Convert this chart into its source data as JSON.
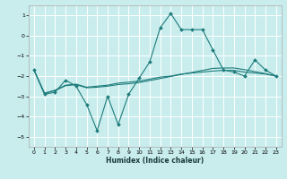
{
  "title": "",
  "xlabel": "Humidex (Indice chaleur)",
  "ylabel": "",
  "xlim": [
    -0.5,
    23.5
  ],
  "ylim": [
    -5.5,
    1.5
  ],
  "yticks": [
    -5,
    -4,
    -3,
    -2,
    -1,
    0,
    1
  ],
  "xticks": [
    0,
    1,
    2,
    3,
    4,
    5,
    6,
    7,
    8,
    9,
    10,
    11,
    12,
    13,
    14,
    15,
    16,
    17,
    18,
    19,
    20,
    21,
    22,
    23
  ],
  "bg_color": "#c9eded",
  "grid_color": "#ffffff",
  "line_color": "#1e7b7b",
  "series1_x": [
    0,
    1,
    2,
    3,
    4,
    5,
    6,
    7,
    8,
    9,
    10,
    11,
    12,
    13,
    14,
    15,
    16,
    17,
    18,
    19,
    20,
    21,
    22,
    23
  ],
  "series1_y": [
    -1.7,
    -2.9,
    -2.8,
    -2.2,
    -2.5,
    -3.4,
    -4.7,
    -3.0,
    -4.4,
    -2.9,
    -2.1,
    -1.3,
    0.4,
    1.1,
    0.3,
    0.3,
    0.3,
    -0.7,
    -1.7,
    -1.8,
    -2.0,
    -1.2,
    -1.7,
    -2.0
  ],
  "series2_x": [
    0,
    1,
    2,
    3,
    4,
    5,
    6,
    7,
    8,
    9,
    10,
    11,
    12,
    13,
    14,
    15,
    16,
    17,
    18,
    19,
    20,
    21,
    22,
    23
  ],
  "series2_y": [
    -1.7,
    -2.85,
    -2.7,
    -2.45,
    -2.4,
    -2.55,
    -2.5,
    -2.45,
    -2.35,
    -2.3,
    -2.25,
    -2.15,
    -2.05,
    -2.0,
    -1.9,
    -1.85,
    -1.8,
    -1.75,
    -1.72,
    -1.72,
    -1.8,
    -1.85,
    -1.9,
    -2.0
  ],
  "series3_x": [
    0,
    1,
    2,
    3,
    4,
    5,
    6,
    7,
    8,
    9,
    10,
    11,
    12,
    13,
    14,
    15,
    16,
    17,
    18,
    19,
    20,
    21,
    22,
    23
  ],
  "series3_y": [
    -1.7,
    -2.85,
    -2.72,
    -2.48,
    -2.42,
    -2.58,
    -2.55,
    -2.5,
    -2.42,
    -2.38,
    -2.32,
    -2.22,
    -2.12,
    -2.02,
    -1.92,
    -1.82,
    -1.72,
    -1.62,
    -1.6,
    -1.6,
    -1.68,
    -1.78,
    -1.88,
    -2.0
  ]
}
